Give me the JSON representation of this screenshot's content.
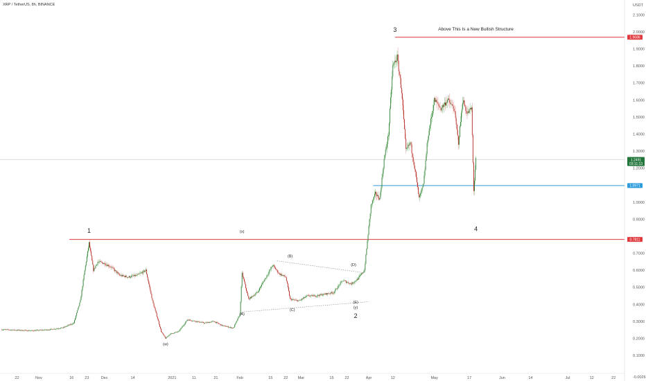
{
  "chart_data": {
    "type": "candlestick",
    "symbol_title": "XRP / TetherUS, 8h, BINANCE",
    "currency": "USDT",
    "y_axis": {
      "min": -0.0026,
      "max": 2.18,
      "ticks": [
        {
          "value": 0.1,
          "label": "0.1000"
        },
        {
          "value": 0.2,
          "label": "0.2000"
        },
        {
          "value": 0.3,
          "label": "0.3000"
        },
        {
          "value": 0.4,
          "label": "0.4000"
        },
        {
          "value": 0.5,
          "label": "0.5000"
        },
        {
          "value": 0.6,
          "label": "0.6000"
        },
        {
          "value": 0.7,
          "label": "0.7000"
        },
        {
          "value": 0.9,
          "label": "0.9000"
        },
        {
          "value": 1.0,
          "label": "1.0000"
        },
        {
          "value": 1.2,
          "label": "1.2000"
        },
        {
          "value": 1.3,
          "label": "1.3000"
        },
        {
          "value": 1.4,
          "label": "1.4000"
        },
        {
          "value": 1.5,
          "label": "1.5000"
        },
        {
          "value": 1.6,
          "label": "1.6000"
        },
        {
          "value": 1.7,
          "label": "1.7000"
        },
        {
          "value": 1.8,
          "label": "1.8000"
        },
        {
          "value": 1.9,
          "label": "1.9000"
        },
        {
          "value": 2.0,
          "label": "2.0000"
        },
        {
          "value": 2.1,
          "label": "2.1000"
        },
        {
          "value": -0.0026,
          "label": "-0.0026"
        }
      ]
    },
    "x_axis": {
      "ticks": [
        {
          "date": "2020-10-22",
          "label": "22"
        },
        {
          "date": "2020-11-01",
          "label": "Nov"
        },
        {
          "date": "2020-11-16",
          "label": "16"
        },
        {
          "date": "2020-11-23",
          "label": "23"
        },
        {
          "date": "2020-12-01",
          "label": "Dec"
        },
        {
          "date": "2020-12-14",
          "label": "14"
        },
        {
          "date": "2021-01-01",
          "label": "2021"
        },
        {
          "date": "2021-01-11",
          "label": "11"
        },
        {
          "date": "2021-01-21",
          "label": "21"
        },
        {
          "date": "2021-02-01",
          "label": "Feb"
        },
        {
          "date": "2021-02-15",
          "label": "15"
        },
        {
          "date": "2021-02-22",
          "label": "22"
        },
        {
          "date": "2021-03-01",
          "label": "Mar"
        },
        {
          "date": "2021-03-15",
          "label": "15"
        },
        {
          "date": "2021-03-22",
          "label": "22"
        },
        {
          "date": "2021-04-01",
          "label": "Apr"
        },
        {
          "date": "2021-04-12",
          "label": "12"
        },
        {
          "date": "2021-05-01",
          "label": "May"
        },
        {
          "date": "2021-05-17",
          "label": "17"
        },
        {
          "date": "2021-06-01",
          "label": "Jun"
        },
        {
          "date": "2021-06-14",
          "label": "14"
        },
        {
          "date": "2021-07-01",
          "label": "Jul"
        },
        {
          "date": "2021-07-12",
          "label": "12"
        },
        {
          "date": "2021-07-22",
          "label": "22"
        }
      ]
    },
    "price_path": [
      [
        "2020-10-15",
        0.252
      ],
      [
        "2020-10-22",
        0.248
      ],
      [
        "2020-10-29",
        0.245
      ],
      [
        "2020-11-05",
        0.25
      ],
      [
        "2020-11-12",
        0.262
      ],
      [
        "2020-11-17",
        0.29
      ],
      [
        "2020-11-20",
        0.42
      ],
      [
        "2020-11-22",
        0.6
      ],
      [
        "2020-11-24",
        0.76
      ],
      [
        "2020-11-26",
        0.6
      ],
      [
        "2020-11-28",
        0.65
      ],
      [
        "2020-12-01",
        0.64
      ],
      [
        "2020-12-04",
        0.62
      ],
      [
        "2020-12-08",
        0.57
      ],
      [
        "2020-12-12",
        0.56
      ],
      [
        "2020-12-16",
        0.57
      ],
      [
        "2020-12-20",
        0.6
      ],
      [
        "2020-12-23",
        0.42
      ],
      [
        "2020-12-27",
        0.24
      ],
      [
        "2020-12-29",
        0.2
      ],
      [
        "2020-12-31",
        0.225
      ],
      [
        "2021-01-04",
        0.24
      ],
      [
        "2021-01-08",
        0.31
      ],
      [
        "2021-01-12",
        0.3
      ],
      [
        "2021-01-16",
        0.29
      ],
      [
        "2021-01-20",
        0.3
      ],
      [
        "2021-01-24",
        0.275
      ],
      [
        "2021-01-29",
        0.26
      ],
      [
        "2021-02-01",
        0.34
      ],
      [
        "2021-02-02",
        0.58
      ],
      [
        "2021-02-05",
        0.43
      ],
      [
        "2021-02-09",
        0.47
      ],
      [
        "2021-02-13",
        0.56
      ],
      [
        "2021-02-16",
        0.63
      ],
      [
        "2021-02-19",
        0.58
      ],
      [
        "2021-02-22",
        0.56
      ],
      [
        "2021-02-24",
        0.43
      ],
      [
        "2021-02-28",
        0.42
      ],
      [
        "2021-03-04",
        0.45
      ],
      [
        "2021-03-08",
        0.45
      ],
      [
        "2021-03-12",
        0.46
      ],
      [
        "2021-03-16",
        0.47
      ],
      [
        "2021-03-20",
        0.54
      ],
      [
        "2021-03-24",
        0.52
      ],
      [
        "2021-03-27",
        0.55
      ],
      [
        "2021-03-30",
        0.6
      ],
      [
        "2021-04-02",
        0.98
      ],
      [
        "2021-04-04",
        1.05
      ],
      [
        "2021-04-06",
        1.02
      ],
      [
        "2021-04-08",
        1.25
      ],
      [
        "2021-04-10",
        1.4
      ],
      [
        "2021-04-12",
        1.8
      ],
      [
        "2021-04-14",
        1.85
      ],
      [
        "2021-04-16",
        1.65
      ],
      [
        "2021-04-18",
        1.3
      ],
      [
        "2021-04-20",
        1.35
      ],
      [
        "2021-04-22",
        1.2
      ],
      [
        "2021-04-24",
        1.02
      ],
      [
        "2021-04-26",
        1.1
      ],
      [
        "2021-04-28",
        1.38
      ],
      [
        "2021-05-01",
        1.6
      ],
      [
        "2021-05-04",
        1.55
      ],
      [
        "2021-05-07",
        1.6
      ],
      [
        "2021-05-10",
        1.55
      ],
      [
        "2021-05-12",
        1.35
      ],
      [
        "2021-05-14",
        1.6
      ],
      [
        "2021-05-16",
        1.52
      ],
      [
        "2021-05-18",
        1.55
      ],
      [
        "2021-05-19",
        1.07
      ],
      [
        "2021-05-20",
        1.249
      ]
    ],
    "wave_labels": [
      {
        "label": "1",
        "date": "2020-11-24",
        "price": 0.82,
        "size": "big"
      },
      {
        "label": "(x)",
        "date": "2021-02-02",
        "price": 0.82,
        "size": "medium"
      },
      {
        "label": "(w)",
        "date": "2020-12-29",
        "price": 0.16,
        "size": "small"
      },
      {
        "label": "(A)",
        "date": "2021-02-02",
        "price": 0.335,
        "size": "small"
      },
      {
        "label": "(B)",
        "date": "2021-02-24",
        "price": 0.675,
        "size": "small"
      },
      {
        "label": "(C)",
        "date": "2021-02-25",
        "price": 0.36,
        "size": "small"
      },
      {
        "label": "(D)",
        "date": "2021-03-25",
        "price": 0.625,
        "size": "small"
      },
      {
        "label": "(E)",
        "date": "2021-03-26",
        "price": 0.405,
        "size": "small"
      },
      {
        "label": "(y)",
        "date": "2021-03-26",
        "price": 0.375,
        "size": "medium"
      },
      {
        "label": "2",
        "date": "2021-03-26",
        "price": 0.32,
        "size": "big"
      },
      {
        "label": "3",
        "date": "2021-04-13",
        "price": 2.0,
        "size": "big"
      },
      {
        "label": "4",
        "date": "2021-05-20",
        "price": 0.83,
        "size": "big"
      }
    ],
    "horizontal_lines": [
      {
        "price": 0.7811,
        "start_date": "2020-11-15",
        "color": "#e0393e",
        "tag": "0.7811"
      },
      {
        "price": 1.0971,
        "start_date": "2021-04-03",
        "color": "#2d9cdb",
        "tag": "1.0971"
      },
      {
        "price": 1.9686,
        "start_date": "2021-04-13",
        "color": "#e0393e",
        "tag": "1.9686"
      }
    ],
    "crosshair_price": 1.2491,
    "current_price_tag": {
      "price": 1.2491,
      "label": "1.2491",
      "sublabel": "03:11:13",
      "color": "#22753b"
    },
    "annotation": {
      "text": "Above This Is a New Bullish Structure",
      "date": "2021-05-20",
      "price": 2.0
    },
    "triangle_lines": [
      [
        [
          "2021-02-18",
          0.655
        ],
        [
          "2021-03-30",
          0.585
        ]
      ],
      [
        [
          "2021-02-02",
          0.355
        ],
        [
          "2021-04-01",
          0.415
        ]
      ]
    ]
  }
}
